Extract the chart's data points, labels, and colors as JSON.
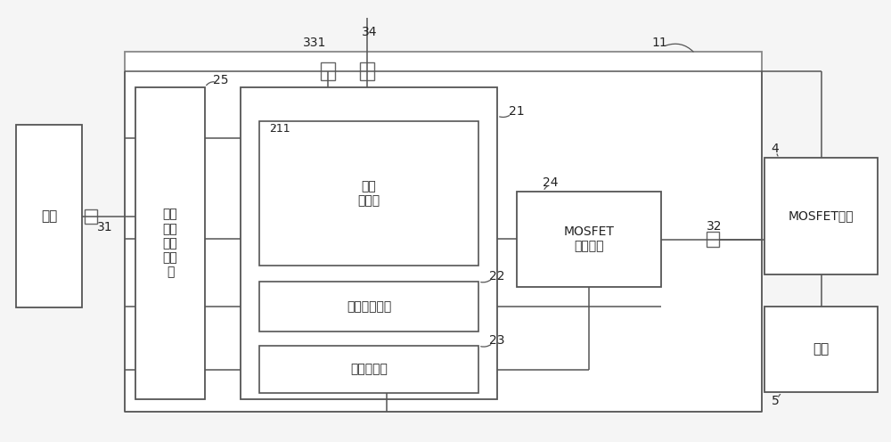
{
  "bg_color": "#f5f5f5",
  "line_color": "#555555",
  "box_line_color": "#555555",
  "font_color": "#222222",
  "labels": {
    "battery": "电池",
    "power_mgmt": "多模\n式电\n源管\n理电\n路",
    "diff_amp": "差分\n放大器",
    "adc": "模数转换电路",
    "mcu": "微控制单元",
    "mosfet_driver": "MOSFET\n驱动电路",
    "mosfet_circuit": "MOSFET电路",
    "motor": "电机"
  },
  "ref_nums": {
    "r31": "31",
    "r25": "25",
    "r21": "21",
    "r211": "211",
    "r22": "22",
    "r23": "23",
    "r24": "24",
    "r4": "4",
    "r5": "5",
    "r11": "11",
    "r331": "331",
    "r34": "34",
    "r32": "32"
  }
}
